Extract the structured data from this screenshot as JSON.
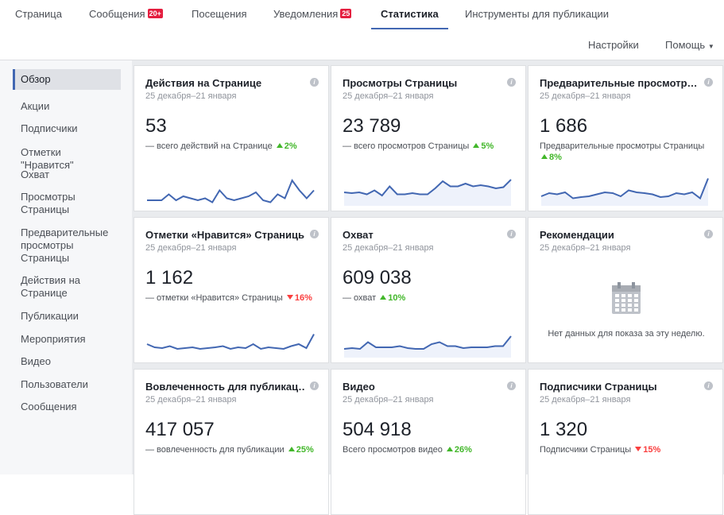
{
  "nav": {
    "tabs": [
      {
        "label": "Страница"
      },
      {
        "label": "Сообщения",
        "badge": "20+"
      },
      {
        "label": "Посещения"
      },
      {
        "label": "Уведомления",
        "badge": "25"
      },
      {
        "label": "Статистика",
        "active": true
      },
      {
        "label": "Инструменты для публикации"
      }
    ],
    "settings": "Настройки",
    "help": "Помощь"
  },
  "sidebar": {
    "active": 0,
    "items": [
      "Обзор",
      "Акции",
      "Подписчики",
      "Отметки \"Нравится\"",
      "Охват",
      "Просмотры Страницы",
      "Предварительные просмотры Страницы",
      "Действия на Странице",
      "Публикации",
      "Мероприятия",
      "Видео",
      "Пользователи",
      "Сообщения"
    ]
  },
  "cards": [
    {
      "title": "Действия на Странице",
      "date": "25 декабря–21 января",
      "value": "53",
      "subtitle": "— всего действий на Странице",
      "change": "2%",
      "trend": "up",
      "area": false,
      "sparkline": [
        10,
        10,
        10,
        25,
        10,
        20,
        15,
        10,
        15,
        5,
        35,
        15,
        10,
        15,
        20,
        30,
        10,
        5,
        25,
        15,
        60,
        35,
        15,
        35
      ]
    },
    {
      "title": "Просмотры Страницы",
      "date": "25 декабря–21 января",
      "value": "23 789",
      "subtitle": "— всего просмотров Страницы",
      "change": "5%",
      "trend": "up",
      "area": true,
      "sparkline": [
        30,
        28,
        30,
        25,
        35,
        22,
        45,
        25,
        25,
        28,
        25,
        25,
        40,
        58,
        45,
        45,
        52,
        45,
        48,
        45,
        40,
        43,
        62
      ]
    },
    {
      "title": "Предварительные просмотр…",
      "date": "25 декабря–21 января",
      "value": "1 686",
      "subtitle": "Предварительные просмотры Страницы",
      "change": "8%",
      "trend": "up",
      "area": true,
      "sparkline": [
        20,
        28,
        25,
        30,
        15,
        18,
        20,
        25,
        30,
        28,
        20,
        35,
        30,
        28,
        25,
        18,
        20,
        28,
        25,
        30,
        15,
        65
      ]
    },
    {
      "title": "Отметки «Нравится» Страницы",
      "date": "25 декабря–21 января",
      "value": "1 162",
      "subtitle": "— отметки «Нравится» Страницы",
      "change": "16%",
      "trend": "down",
      "area": false,
      "sparkline": [
        30,
        22,
        20,
        25,
        18,
        20,
        22,
        18,
        20,
        22,
        25,
        18,
        22,
        20,
        30,
        18,
        22,
        20,
        18,
        25,
        30,
        20,
        55
      ]
    },
    {
      "title": "Охват",
      "date": "25 декабря–21 января",
      "value": "609 038",
      "subtitle": "— охват",
      "change": "10%",
      "trend": "up",
      "area": true,
      "sparkline": [
        18,
        20,
        18,
        35,
        22,
        22,
        22,
        25,
        20,
        18,
        18,
        30,
        35,
        25,
        25,
        20,
        22,
        22,
        22,
        25,
        25,
        50
      ]
    },
    {
      "title": "Рекомендации",
      "date": "25 декабря–21 января",
      "empty": "Нет данных для показа за эту неделю."
    },
    {
      "title": "Вовлеченность для публикац…",
      "date": "25 декабря–21 января",
      "value": "417 057",
      "subtitle": "— вовлеченность для публикации",
      "change": "25%",
      "trend": "up"
    },
    {
      "title": "Видео",
      "date": "25 декабря–21 января",
      "value": "504 918",
      "subtitle": "Всего просмотров видео",
      "change": "26%",
      "trend": "up"
    },
    {
      "title": "Подписчики Страницы",
      "date": "25 декабря–21 января",
      "value": "1 320",
      "subtitle": "Подписчики Страницы",
      "change": "15%",
      "trend": "down"
    }
  ]
}
